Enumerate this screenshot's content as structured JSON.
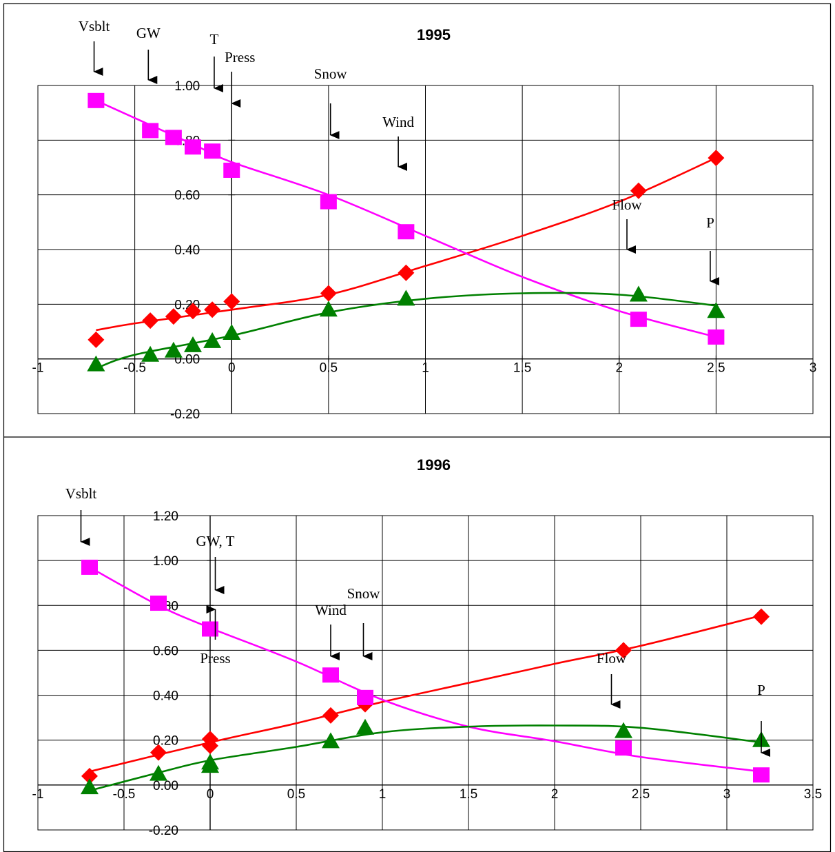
{
  "chart_data": [
    {
      "type": "scatter",
      "title": "1995",
      "xlabel": "",
      "ylabel": "",
      "xlim": [
        -1,
        3
      ],
      "ylim": [
        -0.2,
        1.0
      ],
      "xticks": [
        "-1",
        "-0.5",
        "0",
        "0.5",
        "1",
        "1.5",
        "2",
        "2.5",
        "3"
      ],
      "yticks": [
        "-0.20",
        "0.00",
        "0.20",
        "0.40",
        "0.60",
        "0.80",
        "1.00"
      ],
      "grid": true,
      "legend": "none",
      "series": [
        {
          "marker": "diamond",
          "color": "#ff0000",
          "points": [
            [
              -0.7,
              0.07
            ],
            [
              -0.42,
              0.14
            ],
            [
              -0.3,
              0.155
            ],
            [
              -0.2,
              0.175
            ],
            [
              -0.1,
              0.18
            ],
            [
              0.0,
              0.21
            ],
            [
              0.5,
              0.24
            ],
            [
              0.9,
              0.315
            ],
            [
              2.1,
              0.615
            ],
            [
              2.5,
              0.735
            ]
          ],
          "trend": [
            [
              -0.7,
              0.105
            ],
            [
              -0.5,
              0.13
            ],
            [
              0.0,
              0.18
            ],
            [
              0.5,
              0.235
            ],
            [
              1.0,
              0.34
            ],
            [
              1.5,
              0.45
            ],
            [
              2.0,
              0.575
            ],
            [
              2.5,
              0.735
            ]
          ]
        },
        {
          "marker": "square",
          "color": "#ff00ff",
          "points": [
            [
              -0.7,
              0.945
            ],
            [
              -0.42,
              0.835
            ],
            [
              -0.3,
              0.81
            ],
            [
              -0.2,
              0.775
            ],
            [
              -0.1,
              0.76
            ],
            [
              0.0,
              0.69
            ],
            [
              0.5,
              0.575
            ],
            [
              0.9,
              0.465
            ],
            [
              2.1,
              0.145
            ],
            [
              2.5,
              0.08
            ]
          ],
          "trend": [
            [
              -0.7,
              0.945
            ],
            [
              -0.2,
              0.785
            ],
            [
              0.0,
              0.72
            ],
            [
              0.5,
              0.6
            ],
            [
              1.0,
              0.45
            ],
            [
              1.5,
              0.3
            ],
            [
              2.0,
              0.175
            ],
            [
              2.5,
              0.08
            ]
          ]
        },
        {
          "marker": "triangle",
          "color": "#008000",
          "points": [
            [
              -0.7,
              -0.02
            ],
            [
              -0.42,
              0.015
            ],
            [
              -0.3,
              0.03
            ],
            [
              -0.2,
              0.05
            ],
            [
              -0.1,
              0.065
            ],
            [
              0.0,
              0.095
            ],
            [
              0.5,
              0.18
            ],
            [
              0.9,
              0.22
            ],
            [
              2.1,
              0.235
            ],
            [
              2.5,
              0.175
            ]
          ],
          "trend": [
            [
              -0.7,
              -0.035
            ],
            [
              -0.5,
              0.015
            ],
            [
              0.0,
              0.085
            ],
            [
              0.5,
              0.17
            ],
            [
              1.0,
              0.22
            ],
            [
              1.5,
              0.24
            ],
            [
              2.0,
              0.235
            ],
            [
              2.5,
              0.195
            ]
          ]
        }
      ],
      "annotations": [
        {
          "text": "Vsblt",
          "x": -0.71,
          "dir": "down"
        },
        {
          "text": "GW",
          "x": -0.43,
          "dir": "down"
        },
        {
          "text": "T",
          "x": -0.09,
          "dir": "down"
        },
        {
          "text": "Press",
          "x": 0.0,
          "dir": "down"
        },
        {
          "text": "Snow",
          "x": 0.51,
          "dir": "down"
        },
        {
          "text": "Wind",
          "x": 0.86,
          "dir": "down"
        },
        {
          "text": "Flow",
          "x": 2.04,
          "dir": "down"
        },
        {
          "text": "P",
          "x": 2.47,
          "dir": "down"
        }
      ]
    },
    {
      "type": "scatter",
      "title": "1996",
      "xlabel": "",
      "ylabel": "",
      "xlim": [
        -1,
        3.5
      ],
      "ylim": [
        -0.2,
        1.2
      ],
      "xticks": [
        "-1",
        "-0.5",
        "0",
        "0.5",
        "1",
        "1.5",
        "2",
        "2.5",
        "3",
        "3.5"
      ],
      "yticks": [
        "-0.20",
        "0.00",
        "0.20",
        "0.40",
        "0.60",
        "0.80",
        "1.00",
        "1.20"
      ],
      "grid": true,
      "legend": "none",
      "series": [
        {
          "marker": "diamond",
          "color": "#ff0000",
          "points": [
            [
              -0.7,
              0.04
            ],
            [
              -0.3,
              0.145
            ],
            [
              0.0,
              0.205
            ],
            [
              0.0,
              0.175
            ],
            [
              0.7,
              0.31
            ],
            [
              0.9,
              0.36
            ],
            [
              2.4,
              0.6
            ],
            [
              3.2,
              0.75
            ]
          ],
          "trend": [
            [
              -0.7,
              0.06
            ],
            [
              0.0,
              0.19
            ],
            [
              0.5,
              0.275
            ],
            [
              1.0,
              0.37
            ],
            [
              1.5,
              0.455
            ],
            [
              2.0,
              0.54
            ],
            [
              2.5,
              0.62
            ],
            [
              3.2,
              0.755
            ]
          ]
        },
        {
          "marker": "square",
          "color": "#ff00ff",
          "points": [
            [
              -0.7,
              0.97
            ],
            [
              -0.3,
              0.81
            ],
            [
              0.0,
              0.695
            ],
            [
              0.7,
              0.49
            ],
            [
              0.9,
              0.39
            ],
            [
              2.4,
              0.165
            ],
            [
              3.2,
              0.045
            ]
          ],
          "trend": [
            [
              -0.7,
              0.97
            ],
            [
              -0.3,
              0.8
            ],
            [
              0.0,
              0.7
            ],
            [
              0.5,
              0.55
            ],
            [
              1.0,
              0.38
            ],
            [
              1.5,
              0.26
            ],
            [
              2.0,
              0.195
            ],
            [
              2.5,
              0.125
            ],
            [
              3.2,
              0.06
            ]
          ]
        },
        {
          "marker": "triangle",
          "color": "#008000",
          "points": [
            [
              -0.7,
              -0.01
            ],
            [
              -0.3,
              0.05
            ],
            [
              0.0,
              0.085
            ],
            [
              0.0,
              0.1
            ],
            [
              0.7,
              0.195
            ],
            [
              0.9,
              0.255
            ],
            [
              2.4,
              0.24
            ],
            [
              3.2,
              0.2
            ]
          ],
          "trend": [
            [
              -0.7,
              -0.025
            ],
            [
              -0.3,
              0.055
            ],
            [
              0.0,
              0.11
            ],
            [
              0.5,
              0.17
            ],
            [
              1.0,
              0.235
            ],
            [
              1.5,
              0.26
            ],
            [
              2.0,
              0.265
            ],
            [
              2.5,
              0.255
            ],
            [
              3.2,
              0.19
            ]
          ]
        }
      ],
      "annotations": [
        {
          "text": "Vsblt",
          "x": -0.75,
          "dir": "down"
        },
        {
          "text": "GW, T",
          "x": 0.03,
          "dir": "down"
        },
        {
          "text": "Press",
          "x": 0.03,
          "dir": "up"
        },
        {
          "text": "Wind",
          "x": 0.7,
          "dir": "down"
        },
        {
          "text": "Snow",
          "x": 0.89,
          "dir": "down"
        },
        {
          "text": "Flow",
          "x": 2.33,
          "dir": "down"
        },
        {
          "text": "P",
          "x": 3.2,
          "dir": "down"
        }
      ]
    }
  ]
}
